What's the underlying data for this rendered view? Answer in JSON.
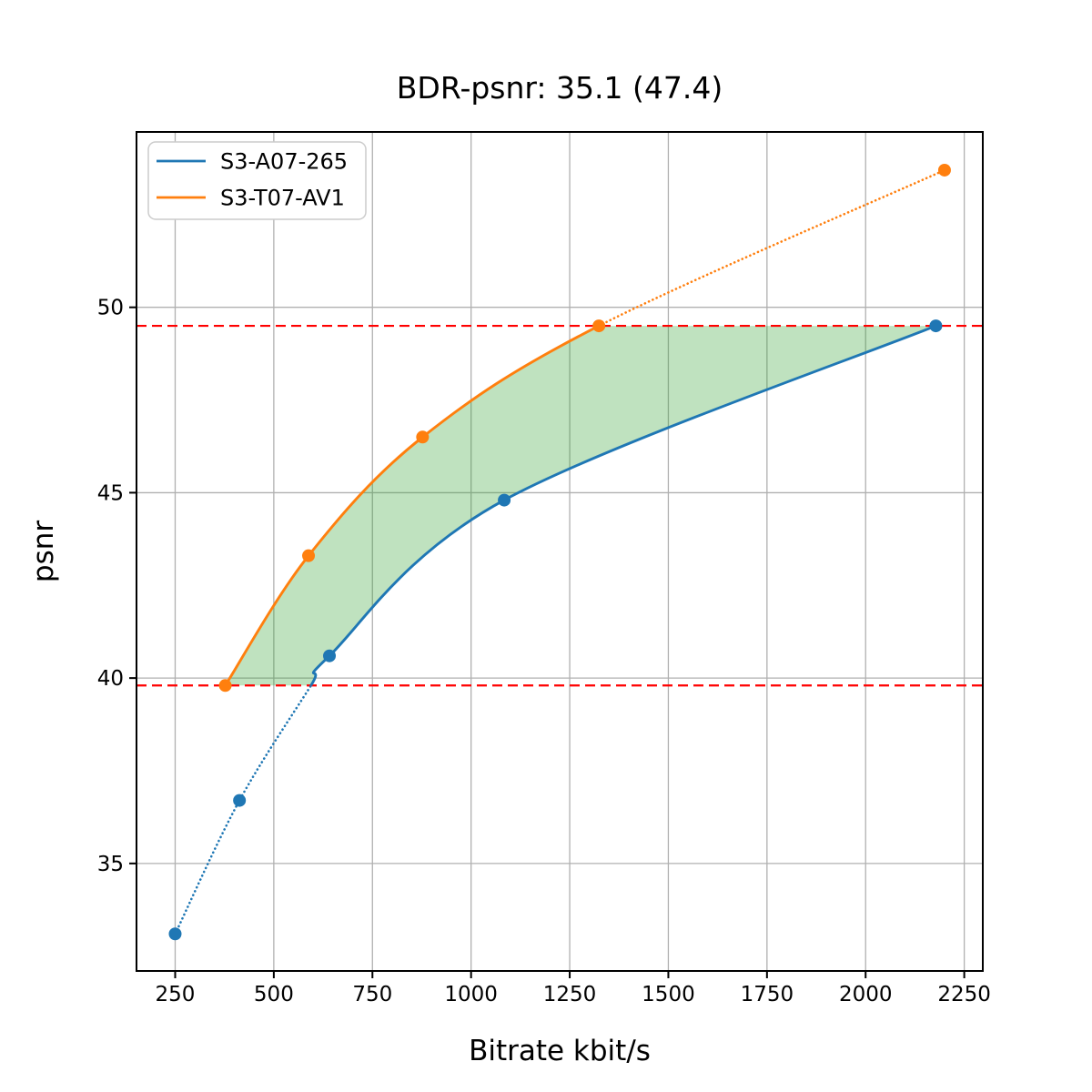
{
  "figure": {
    "background": "#ffffff",
    "text_color": "#000000",
    "grid_color": "#b0b0b0",
    "spine_color": "#000000"
  },
  "chart_data": {
    "type": "line",
    "title": "BDR-psnr: 35.1 (47.4)",
    "xlabel": "Bitrate kbit/s",
    "ylabel": "psnr",
    "xlim": [
      152,
      2297
    ],
    "ylim": [
      32.1,
      54.73
    ],
    "x_ticks": [
      250,
      500,
      750,
      1000,
      1250,
      1500,
      1750,
      2000,
      2250
    ],
    "y_ticks": [
      35,
      40,
      45,
      50
    ],
    "grid": true,
    "legend_position": "upper-left",
    "series": [
      {
        "name": "S3-A07-265",
        "color": "#1f77b4",
        "points": [
          [
            250,
            33.1
          ],
          [
            413,
            36.7
          ],
          [
            641,
            40.6
          ],
          [
            1084,
            44.8
          ],
          [
            2178,
            49.5
          ]
        ],
        "line_style": "solid inside integration bounds, dotted outside",
        "marker": "circle"
      },
      {
        "name": "S3-T07-AV1",
        "color": "#ff7f0e",
        "points": [
          [
            377,
            39.8
          ],
          [
            588,
            43.3
          ],
          [
            877,
            46.5
          ],
          [
            1324,
            49.5
          ],
          [
            2200,
            53.7
          ]
        ],
        "line_style": "solid inside integration bounds, dotted outside",
        "marker": "circle"
      }
    ],
    "hlines": {
      "values": [
        49.5,
        39.8
      ],
      "color": "#ff0000",
      "style": "dashed",
      "meaning": "BD integration psnr bounds"
    },
    "shaded_region": {
      "between": "the two curves, clipped to the psnr bounds",
      "y_range": [
        39.8,
        49.5
      ],
      "color": "#2ca02c",
      "opacity": 0.3
    }
  }
}
